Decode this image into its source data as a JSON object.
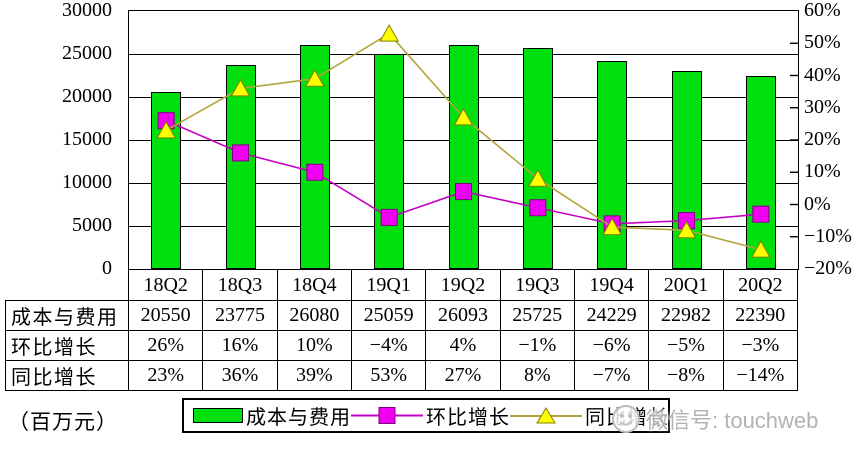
{
  "chart_data": {
    "type": "bar",
    "subtype": "bar-line-combo",
    "categories": [
      "18Q2",
      "18Q3",
      "18Q4",
      "19Q1",
      "19Q2",
      "19Q3",
      "19Q4",
      "20Q1",
      "20Q2"
    ],
    "series": [
      {
        "name": "成本与费用",
        "type": "bar",
        "axis": "left",
        "color": "#00e00e",
        "border_color": "#000000",
        "values": [
          20550,
          23775,
          26080,
          25059,
          26093,
          25725,
          24229,
          22982,
          22390
        ]
      },
      {
        "name": "环比增长",
        "type": "line",
        "axis": "right",
        "marker": "square",
        "line_color": "#c400c4",
        "marker_color": "#f000f0",
        "marker_border": "#800080",
        "values": [
          26,
          16,
          10,
          -4,
          4,
          -1,
          -6,
          -5,
          -3
        ]
      },
      {
        "name": "同比增长",
        "type": "line",
        "axis": "right",
        "marker": "triangle",
        "line_color": "#b3a53c",
        "marker_color": "#ffff00",
        "marker_border": "#808000",
        "values": [
          23,
          36,
          39,
          53,
          27,
          8,
          -7,
          -8,
          -14
        ]
      }
    ],
    "left_axis": {
      "min": 0,
      "max": 30000,
      "step": 5000,
      "tick_labels": [
        "30000",
        "25000",
        "20000",
        "15000",
        "10000",
        "5000",
        "0"
      ]
    },
    "right_axis": {
      "min": -20,
      "max": 60,
      "step": 10,
      "tick_labels": [
        "60%",
        "50%",
        "40%",
        "30%",
        "20%",
        "10%",
        "0%",
        "−10%",
        "−20%"
      ]
    },
    "grid": true,
    "legend_position": "bottom"
  },
  "table": {
    "col_headers": [
      "18Q2",
      "18Q3",
      "18Q4",
      "19Q1",
      "19Q2",
      "19Q3",
      "19Q4",
      "20Q1",
      "20Q2"
    ],
    "rows": [
      {
        "header": "成本与费用",
        "cells": [
          "20550",
          "23775",
          "26080",
          "25059",
          "26093",
          "25725",
          "24229",
          "22982",
          "22390"
        ]
      },
      {
        "header": "环比增长",
        "cells": [
          "26%",
          "16%",
          "10%",
          "−4%",
          "4%",
          "−1%",
          "−6%",
          "−5%",
          "−3%"
        ]
      },
      {
        "header": "同比增长",
        "cells": [
          "23%",
          "36%",
          "39%",
          "53%",
          "27%",
          "8%",
          "−7%",
          "−8%",
          "−14%"
        ]
      }
    ]
  },
  "unit_label": "（百万元）",
  "legend": {
    "items": [
      {
        "label": "成本与费用",
        "swatch": "bar-swatch"
      },
      {
        "label": "环比增长",
        "swatch": "square-marker"
      },
      {
        "label": "同比增长",
        "swatch": "triangle-marker"
      }
    ]
  },
  "watermark": {
    "text": "微信号: touchweb",
    "icon": "wechat-icon",
    "color": "#b3b3b3"
  }
}
